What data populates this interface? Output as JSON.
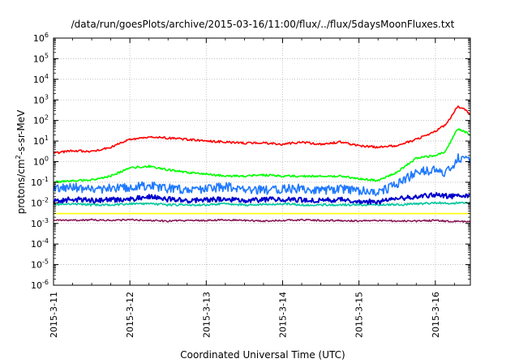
{
  "chart_data": {
    "type": "line",
    "title": "/data/run/goesPlots/archive/2015-03-16/11:00/flux/../flux/5daysMoonFluxes.txt",
    "xlabel": "Coordinated Universal Time (UTC)",
    "ylabel_parts": {
      "pre": "protons/cm",
      "sup": "2",
      "post": "-s-sr-MeV"
    },
    "y_scale": "log",
    "ylim": [
      1e-06,
      1000000.0
    ],
    "xlim": [
      "2015-03-11 00:00",
      "2015-03-16 11:00"
    ],
    "grid": true,
    "x_ticks": [
      "2015-3-11",
      "2015-3-12",
      "2015-3-13",
      "2015-3-14",
      "2015-3-15",
      "2015-3-16"
    ],
    "y_ticks": [
      {
        "base": "10",
        "exp": "-6"
      },
      {
        "base": "10",
        "exp": "-5"
      },
      {
        "base": "10",
        "exp": "-4"
      },
      {
        "base": "10",
        "exp": "-3"
      },
      {
        "base": "10",
        "exp": "-2"
      },
      {
        "base": "10",
        "exp": "-1"
      },
      {
        "base": "10",
        "exp": "0"
      },
      {
        "base": "10",
        "exp": "1"
      },
      {
        "base": "10",
        "exp": "2"
      },
      {
        "base": "10",
        "exp": "3"
      },
      {
        "base": "10",
        "exp": "4"
      },
      {
        "base": "10",
        "exp": "5"
      },
      {
        "base": "10",
        "exp": "6"
      }
    ],
    "series": [
      {
        "color": "#ff0000",
        "x": [
          "2015-03-11 00:00",
          "2015-03-11 06:00",
          "2015-03-11 12:00",
          "2015-03-11 18:00",
          "2015-03-12 00:00",
          "2015-03-12 06:00",
          "2015-03-12 12:00",
          "2015-03-12 18:00",
          "2015-03-13 00:00",
          "2015-03-13 06:00",
          "2015-03-13 12:00",
          "2015-03-13 18:00",
          "2015-03-14 00:00",
          "2015-03-14 06:00",
          "2015-03-14 12:00",
          "2015-03-14 18:00",
          "2015-03-15 00:00",
          "2015-03-15 06:00",
          "2015-03-15 12:00",
          "2015-03-15 18:00",
          "2015-03-16 00:00",
          "2015-03-16 03:00",
          "2015-03-16 05:00",
          "2015-03-16 07:00",
          "2015-03-16 09:00",
          "2015-03-16 11:00"
        ],
        "y": [
          2.5,
          3.5,
          3,
          5,
          12,
          16,
          14,
          12,
          10,
          9,
          8,
          8,
          7,
          9,
          7,
          9,
          6,
          5,
          6,
          12,
          30,
          60,
          150,
          500,
          350,
          200
        ]
      },
      {
        "color": "#00ff00",
        "x": [
          "2015-03-11 00:00",
          "2015-03-11 06:00",
          "2015-03-11 12:00",
          "2015-03-11 18:00",
          "2015-03-12 00:00",
          "2015-03-12 06:00",
          "2015-03-12 12:00",
          "2015-03-12 18:00",
          "2015-03-13 00:00",
          "2015-03-13 06:00",
          "2015-03-13 12:00",
          "2015-03-13 18:00",
          "2015-03-14 00:00",
          "2015-03-14 06:00",
          "2015-03-14 12:00",
          "2015-03-14 18:00",
          "2015-03-15 00:00",
          "2015-03-15 06:00",
          "2015-03-15 12:00",
          "2015-03-15 18:00",
          "2015-03-16 00:00",
          "2015-03-16 03:00",
          "2015-03-16 05:00",
          "2015-03-16 07:00",
          "2015-03-16 09:00",
          "2015-03-16 11:00"
        ],
        "y": [
          0.1,
          0.12,
          0.13,
          0.2,
          0.5,
          0.6,
          0.4,
          0.3,
          0.25,
          0.2,
          0.2,
          0.22,
          0.2,
          0.2,
          0.2,
          0.2,
          0.15,
          0.12,
          0.3,
          1.5,
          2,
          3,
          10,
          40,
          30,
          20
        ]
      },
      {
        "color": "#1e78ff",
        "x": [
          "2015-03-11 00:00",
          "2015-03-11 06:00",
          "2015-03-11 12:00",
          "2015-03-11 18:00",
          "2015-03-12 00:00",
          "2015-03-12 06:00",
          "2015-03-12 12:00",
          "2015-03-12 18:00",
          "2015-03-13 00:00",
          "2015-03-13 06:00",
          "2015-03-13 12:00",
          "2015-03-13 18:00",
          "2015-03-14 00:00",
          "2015-03-14 06:00",
          "2015-03-14 12:00",
          "2015-03-14 18:00",
          "2015-03-15 00:00",
          "2015-03-15 06:00",
          "2015-03-15 12:00",
          "2015-03-15 18:00",
          "2015-03-16 00:00",
          "2015-03-16 03:00",
          "2015-03-16 05:00",
          "2015-03-16 07:00",
          "2015-03-16 09:00",
          "2015-03-16 11:00"
        ],
        "y": [
          0.05,
          0.06,
          0.04,
          0.05,
          0.06,
          0.07,
          0.05,
          0.04,
          0.05,
          0.06,
          0.05,
          0.04,
          0.05,
          0.05,
          0.04,
          0.05,
          0.04,
          0.03,
          0.08,
          0.3,
          0.4,
          0.3,
          0.5,
          1.5,
          1.5,
          1
        ]
      },
      {
        "color": "#0000cc",
        "x": [
          "2015-03-11 00:00",
          "2015-03-11 06:00",
          "2015-03-11 12:00",
          "2015-03-11 18:00",
          "2015-03-12 00:00",
          "2015-03-12 06:00",
          "2015-03-12 12:00",
          "2015-03-12 18:00",
          "2015-03-13 00:00",
          "2015-03-13 06:00",
          "2015-03-13 12:00",
          "2015-03-13 18:00",
          "2015-03-14 00:00",
          "2015-03-14 06:00",
          "2015-03-14 12:00",
          "2015-03-14 18:00",
          "2015-03-15 00:00",
          "2015-03-15 06:00",
          "2015-03-15 12:00",
          "2015-03-15 18:00",
          "2015-03-16 00:00",
          "2015-03-16 03:00",
          "2015-03-16 05:00",
          "2015-03-16 07:00",
          "2015-03-16 09:00",
          "2015-03-16 11:00"
        ],
        "y": [
          0.012,
          0.015,
          0.013,
          0.014,
          0.015,
          0.02,
          0.015,
          0.013,
          0.014,
          0.015,
          0.013,
          0.014,
          0.015,
          0.014,
          0.013,
          0.015,
          0.012,
          0.011,
          0.015,
          0.02,
          0.025,
          0.022,
          0.02,
          0.025,
          0.022,
          0.025
        ]
      },
      {
        "color": "#00c8a0",
        "x": [
          "2015-03-11 00:00",
          "2015-03-11 06:00",
          "2015-03-11 12:00",
          "2015-03-11 18:00",
          "2015-03-12 00:00",
          "2015-03-12 06:00",
          "2015-03-12 12:00",
          "2015-03-12 18:00",
          "2015-03-13 00:00",
          "2015-03-13 06:00",
          "2015-03-13 12:00",
          "2015-03-13 18:00",
          "2015-03-14 00:00",
          "2015-03-14 06:00",
          "2015-03-14 12:00",
          "2015-03-14 18:00",
          "2015-03-15 00:00",
          "2015-03-15 06:00",
          "2015-03-15 12:00",
          "2015-03-15 18:00",
          "2015-03-16 00:00",
          "2015-03-16 03:00",
          "2015-03-16 05:00",
          "2015-03-16 07:00",
          "2015-03-16 09:00",
          "2015-03-16 11:00"
        ],
        "y": [
          0.008,
          0.009,
          0.008,
          0.008,
          0.009,
          0.009,
          0.008,
          0.008,
          0.008,
          0.009,
          0.008,
          0.008,
          0.009,
          0.008,
          0.008,
          0.008,
          0.008,
          0.008,
          0.008,
          0.009,
          0.01,
          0.01,
          0.009,
          0.01,
          0.01,
          0.01
        ]
      },
      {
        "color": "#ffff00",
        "x": [
          "2015-03-11 00:00",
          "2015-03-11 06:00",
          "2015-03-11 12:00",
          "2015-03-11 18:00",
          "2015-03-12 00:00",
          "2015-03-12 06:00",
          "2015-03-12 12:00",
          "2015-03-12 18:00",
          "2015-03-13 00:00",
          "2015-03-13 06:00",
          "2015-03-13 12:00",
          "2015-03-13 18:00",
          "2015-03-14 00:00",
          "2015-03-14 06:00",
          "2015-03-14 12:00",
          "2015-03-14 18:00",
          "2015-03-15 00:00",
          "2015-03-15 06:00",
          "2015-03-15 12:00",
          "2015-03-15 18:00",
          "2015-03-16 00:00",
          "2015-03-16 03:00",
          "2015-03-16 05:00",
          "2015-03-16 07:00",
          "2015-03-16 09:00",
          "2015-03-16 11:00"
        ],
        "y": [
          0.003,
          0.003,
          0.003,
          0.003,
          0.003,
          0.003,
          0.003,
          0.003,
          0.003,
          0.003,
          0.003,
          0.003,
          0.003,
          0.003,
          0.003,
          0.003,
          0.003,
          0.003,
          0.003,
          0.003,
          0.003,
          0.003,
          0.003,
          0.003,
          0.003,
          0.003
        ]
      },
      {
        "color": "#8b1a5a",
        "x": [
          "2015-03-11 00:00",
          "2015-03-11 06:00",
          "2015-03-11 12:00",
          "2015-03-11 18:00",
          "2015-03-12 00:00",
          "2015-03-12 06:00",
          "2015-03-12 12:00",
          "2015-03-12 18:00",
          "2015-03-13 00:00",
          "2015-03-13 06:00",
          "2015-03-13 12:00",
          "2015-03-13 18:00",
          "2015-03-14 00:00",
          "2015-03-14 06:00",
          "2015-03-14 12:00",
          "2015-03-14 18:00",
          "2015-03-15 00:00",
          "2015-03-15 06:00",
          "2015-03-15 12:00",
          "2015-03-15 18:00",
          "2015-03-16 00:00",
          "2015-03-16 03:00",
          "2015-03-16 05:00",
          "2015-03-16 07:00",
          "2015-03-16 09:00",
          "2015-03-16 11:00"
        ],
        "y": [
          0.0015,
          0.0014,
          0.0015,
          0.0014,
          0.0015,
          0.0014,
          0.0013,
          0.0014,
          0.0014,
          0.0015,
          0.0014,
          0.0013,
          0.0014,
          0.0015,
          0.0014,
          0.0014,
          0.0013,
          0.0014,
          0.0013,
          0.0013,
          0.0014,
          0.0013,
          0.0012,
          0.0013,
          0.0012,
          0.0012
        ]
      }
    ]
  }
}
